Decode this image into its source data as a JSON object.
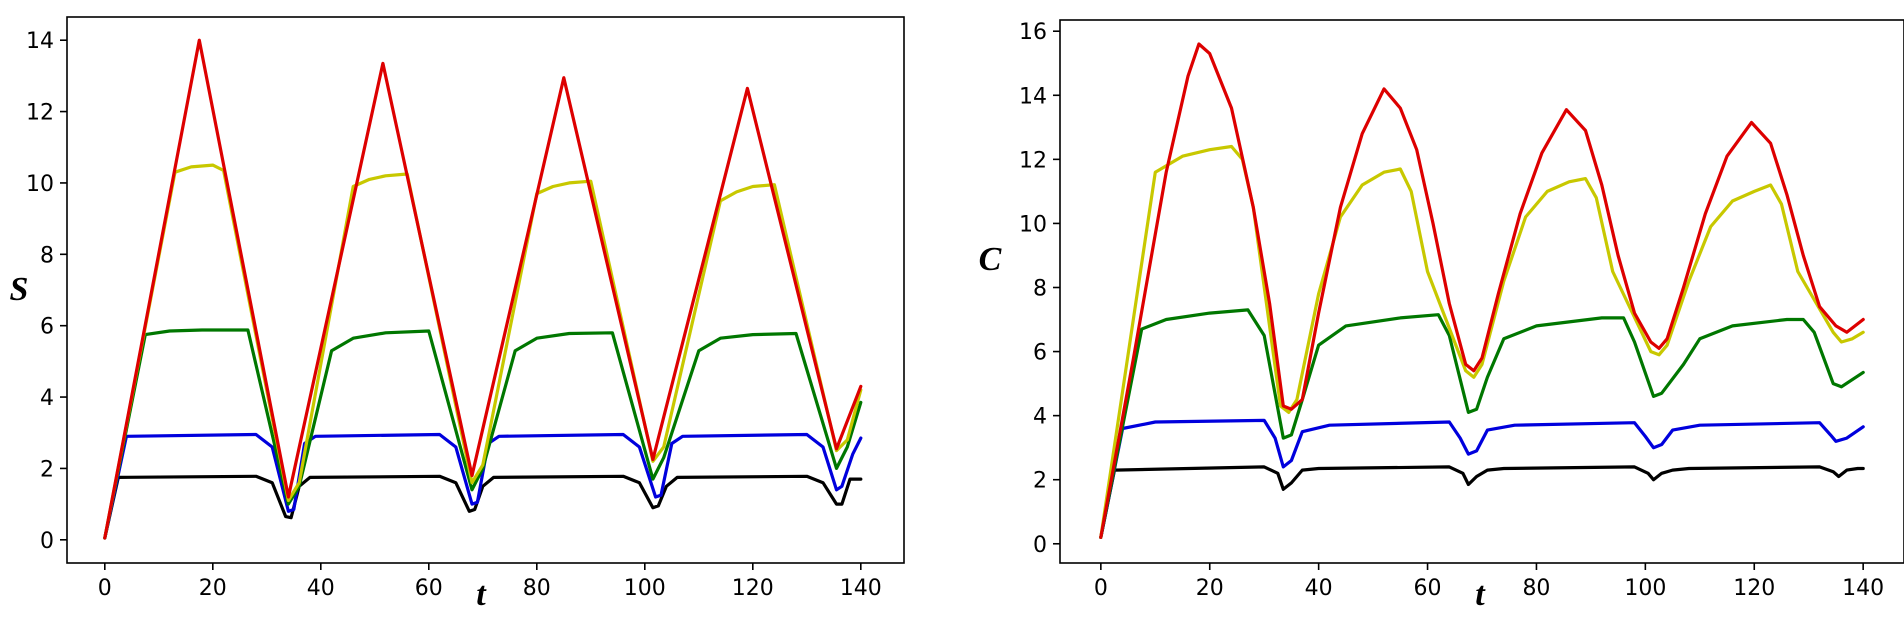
{
  "chart_data": [
    {
      "type": "line",
      "title": "",
      "xlabel": "t",
      "ylabel": "S",
      "xlim": [
        -7,
        148
      ],
      "ylim": [
        -0.65,
        14.65
      ],
      "xticks": [
        0,
        20,
        40,
        60,
        80,
        100,
        120,
        140
      ],
      "yticks": [
        0,
        2,
        4,
        6,
        8,
        10,
        12,
        14
      ],
      "grid": false,
      "series": [
        {
          "name": "black",
          "color": "#000000",
          "x": [
            0,
            2.5,
            28,
            31,
            33.5,
            34.5,
            36,
            38,
            62,
            65,
            67.5,
            68.5,
            70,
            72,
            96,
            99,
            101.5,
            102.5,
            104,
            106,
            130,
            133,
            135.5,
            136.5,
            138,
            140
          ],
          "y": [
            0.05,
            1.75,
            1.78,
            1.6,
            0.65,
            0.62,
            1.5,
            1.75,
            1.78,
            1.6,
            0.8,
            0.85,
            1.5,
            1.75,
            1.78,
            1.6,
            0.9,
            0.95,
            1.5,
            1.75,
            1.78,
            1.6,
            1.0,
            1.0,
            1.7,
            1.7
          ]
        },
        {
          "name": "blue",
          "color": "#0000dd",
          "x": [
            0,
            4,
            28,
            31,
            34,
            35,
            37,
            39,
            62,
            65,
            68,
            69,
            71,
            73,
            96,
            99,
            102,
            103,
            105,
            107,
            130,
            133,
            135.5,
            136.5,
            138.5,
            140
          ],
          "y": [
            0.05,
            2.9,
            2.95,
            2.6,
            0.8,
            0.85,
            2.7,
            2.9,
            2.95,
            2.6,
            1.0,
            1.05,
            2.7,
            2.9,
            2.95,
            2.6,
            1.2,
            1.25,
            2.7,
            2.9,
            2.95,
            2.6,
            1.4,
            1.5,
            2.4,
            2.85
          ]
        },
        {
          "name": "green",
          "color": "#007700",
          "x": [
            0,
            7.5,
            12,
            18,
            26.5,
            34,
            36,
            42,
            46,
            52,
            60,
            68,
            70,
            76,
            80,
            86,
            94,
            101.5,
            103.5,
            110,
            114,
            120,
            128,
            135.5,
            137.5,
            140
          ],
          "y": [
            0.05,
            5.75,
            5.85,
            5.88,
            5.88,
            1.0,
            1.5,
            5.3,
            5.65,
            5.8,
            5.85,
            1.4,
            2.0,
            5.3,
            5.65,
            5.78,
            5.8,
            1.7,
            2.3,
            5.3,
            5.65,
            5.75,
            5.78,
            2.0,
            2.6,
            3.85
          ]
        },
        {
          "name": "yellow",
          "color": "#c8c800",
          "x": [
            0,
            13,
            16,
            20,
            22,
            34,
            36,
            46,
            49,
            52,
            56,
            68,
            70,
            80,
            83,
            86,
            90,
            101.5,
            103.5,
            114,
            117,
            120,
            124,
            135.5,
            137.5,
            140
          ],
          "y": [
            0.05,
            10.3,
            10.45,
            10.5,
            10.35,
            1.1,
            1.6,
            9.9,
            10.1,
            10.2,
            10.25,
            1.6,
            2.1,
            9.7,
            9.9,
            10.0,
            10.05,
            2.2,
            2.6,
            9.5,
            9.75,
            9.9,
            9.95,
            2.5,
            2.8,
            4.2
          ]
        },
        {
          "name": "red",
          "color": "#dd0000",
          "x": [
            0,
            17.5,
            34,
            51.5,
            68,
            85,
            101.5,
            119,
            135.5,
            140
          ],
          "y": [
            0.05,
            14.0,
            1.2,
            13.35,
            1.8,
            12.95,
            2.25,
            12.65,
            2.55,
            4.3
          ]
        }
      ]
    },
    {
      "type": "line",
      "title": "",
      "xlabel": "t",
      "ylabel": "C",
      "xlim": [
        -7.5,
        147.5
      ],
      "ylim": [
        -0.6,
        16.35
      ],
      "xticks": [
        0,
        20,
        40,
        60,
        80,
        100,
        120,
        140
      ],
      "yticks": [
        0,
        2,
        4,
        6,
        8,
        10,
        12,
        14,
        16
      ],
      "grid": false,
      "series": [
        {
          "name": "black",
          "color": "#000000",
          "x": [
            0,
            2.5,
            30,
            32.5,
            33.5,
            35,
            37,
            40,
            64,
            66.5,
            67.5,
            69,
            71,
            74,
            98,
            100.5,
            101.5,
            103,
            105,
            108,
            132,
            134.5,
            135.5,
            137,
            139,
            140
          ],
          "y": [
            0.2,
            2.3,
            2.4,
            2.2,
            1.7,
            1.9,
            2.3,
            2.35,
            2.4,
            2.2,
            1.85,
            2.1,
            2.3,
            2.35,
            2.4,
            2.2,
            2.0,
            2.2,
            2.3,
            2.35,
            2.4,
            2.25,
            2.1,
            2.3,
            2.35,
            2.35
          ]
        },
        {
          "name": "blue",
          "color": "#0000dd",
          "x": [
            0,
            4,
            10,
            30,
            32,
            33.5,
            35,
            37,
            42,
            64,
            66,
            67.5,
            69,
            71,
            76,
            98,
            100,
            101.5,
            103,
            105,
            110,
            132,
            134,
            135,
            137,
            140
          ],
          "y": [
            0.2,
            3.6,
            3.8,
            3.85,
            3.3,
            2.4,
            2.6,
            3.5,
            3.7,
            3.8,
            3.3,
            2.8,
            2.9,
            3.55,
            3.7,
            3.78,
            3.35,
            3.0,
            3.1,
            3.55,
            3.7,
            3.78,
            3.4,
            3.2,
            3.3,
            3.65
          ]
        },
        {
          "name": "green",
          "color": "#007700",
          "x": [
            0,
            7.5,
            12,
            20,
            27,
            30,
            33.5,
            35,
            37,
            40,
            45,
            55,
            62,
            64,
            67.5,
            69,
            71,
            74,
            80,
            92,
            96,
            98,
            101.5,
            103,
            107,
            110,
            116,
            126,
            129,
            131,
            134.5,
            136,
            140
          ],
          "y": [
            0.2,
            6.7,
            7.0,
            7.2,
            7.3,
            6.5,
            3.3,
            3.4,
            4.5,
            6.2,
            6.8,
            7.05,
            7.15,
            6.5,
            4.1,
            4.2,
            5.2,
            6.4,
            6.8,
            7.05,
            7.05,
            6.3,
            4.6,
            4.7,
            5.6,
            6.4,
            6.8,
            7.0,
            7.0,
            6.6,
            5.0,
            4.9,
            5.35
          ]
        },
        {
          "name": "yellow",
          "color": "#c8c800",
          "x": [
            0,
            10,
            15,
            20,
            24,
            26,
            28,
            33,
            34.5,
            36,
            40,
            44,
            48,
            52,
            55,
            57,
            60,
            67,
            68.5,
            70,
            74,
            78,
            82,
            86,
            89,
            91,
            94,
            101,
            102.5,
            104,
            108,
            112,
            116,
            120,
            123,
            125,
            128,
            134.5,
            136,
            138,
            140
          ],
          "y": [
            0.2,
            11.6,
            12.1,
            12.3,
            12.4,
            12.0,
            10.5,
            4.3,
            4.1,
            4.5,
            7.8,
            10.2,
            11.2,
            11.6,
            11.7,
            11.0,
            8.5,
            5.4,
            5.2,
            5.6,
            8.2,
            10.2,
            11.0,
            11.3,
            11.4,
            10.8,
            8.5,
            6.0,
            5.9,
            6.2,
            8.2,
            9.9,
            10.7,
            11.0,
            11.2,
            10.6,
            8.5,
            6.6,
            6.3,
            6.4,
            6.6
          ]
        },
        {
          "name": "red",
          "color": "#dd0000",
          "x": [
            0,
            6,
            12,
            16,
            18,
            20,
            24,
            28,
            31,
            33.5,
            35,
            37,
            40,
            44,
            48,
            52,
            55,
            58,
            61,
            64,
            67,
            68.5,
            70,
            73,
            77,
            81,
            85.5,
            89,
            92,
            95,
            98,
            101,
            102.5,
            104,
            107,
            111,
            115,
            119.5,
            123,
            126,
            129,
            132,
            135,
            137,
            140
          ],
          "y": [
            0.2,
            5.8,
            11.6,
            14.6,
            15.6,
            15.3,
            13.6,
            10.5,
            7.5,
            4.3,
            4.2,
            4.5,
            7.2,
            10.5,
            12.8,
            14.2,
            13.6,
            12.3,
            10.0,
            7.5,
            5.6,
            5.4,
            5.8,
            7.8,
            10.3,
            12.2,
            13.55,
            12.9,
            11.2,
            9.0,
            7.2,
            6.3,
            6.1,
            6.4,
            8.0,
            10.3,
            12.1,
            13.15,
            12.5,
            10.9,
            9.0,
            7.4,
            6.8,
            6.6,
            7.0
          ]
        }
      ]
    }
  ]
}
